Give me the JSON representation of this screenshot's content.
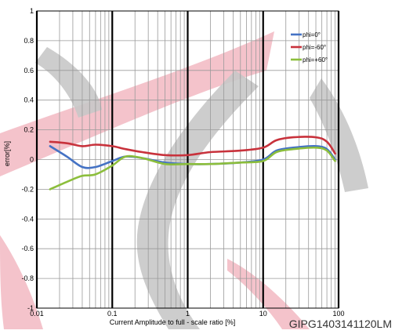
{
  "chart_data": {
    "type": "line",
    "title": "",
    "xlabel": "Current Amplitude to full  - scale ratio [%]",
    "ylabel": "error[%]",
    "xscale": "log",
    "xlim": [
      0.01,
      100
    ],
    "ylim": [
      -1,
      1
    ],
    "grid": true,
    "legend_position": "top-right",
    "x_ticks": [
      {
        "value": 0.01,
        "label": "0.01"
      },
      {
        "value": 0.1,
        "label": "0.1"
      },
      {
        "value": 1,
        "label": "1"
      },
      {
        "value": 10,
        "label": "10"
      },
      {
        "value": 100,
        "label": "100"
      }
    ],
    "y_ticks": [
      {
        "value": 1,
        "label": "1"
      },
      {
        "value": 0.8,
        "label": "0.8"
      },
      {
        "value": 0.6,
        "label": "0.6"
      },
      {
        "value": 0.4,
        "label": "0.4"
      },
      {
        "value": 0.2,
        "label": "0.2"
      },
      {
        "value": 0,
        "label": "0"
      },
      {
        "value": -0.2,
        "label": "-0.2"
      },
      {
        "value": -0.4,
        "label": "-0.4"
      },
      {
        "value": -0.6,
        "label": "-0.6"
      },
      {
        "value": -0.8,
        "label": "-0.8"
      },
      {
        "value": -1,
        "label": "-1"
      }
    ],
    "series": [
      {
        "name": "phi=0°",
        "color": "#4472c4",
        "x": [
          0.015,
          0.025,
          0.04,
          0.06,
          0.1,
          0.15,
          0.25,
          0.5,
          1,
          2,
          5,
          10,
          15,
          25,
          50,
          70,
          90
        ],
        "y": [
          0.09,
          0.02,
          -0.05,
          -0.05,
          -0.01,
          0.02,
          0.01,
          -0.02,
          -0.03,
          -0.03,
          -0.02,
          0.0,
          0.06,
          0.08,
          0.09,
          0.07,
          0.0
        ]
      },
      {
        "name": "phi=-60°",
        "color": "#c8323c",
        "x": [
          0.015,
          0.025,
          0.04,
          0.06,
          0.1,
          0.15,
          0.25,
          0.5,
          1,
          2,
          5,
          10,
          15,
          25,
          50,
          70,
          90
        ],
        "y": [
          0.12,
          0.11,
          0.09,
          0.1,
          0.09,
          0.07,
          0.05,
          0.03,
          0.03,
          0.05,
          0.06,
          0.08,
          0.13,
          0.15,
          0.15,
          0.12,
          0.04
        ]
      },
      {
        "name": "phi=+60°",
        "color": "#8cbe3c",
        "x": [
          0.015,
          0.025,
          0.04,
          0.06,
          0.1,
          0.15,
          0.25,
          0.5,
          1,
          2,
          5,
          10,
          15,
          25,
          50,
          70,
          90
        ],
        "y": [
          -0.2,
          -0.15,
          -0.11,
          -0.1,
          -0.04,
          0.02,
          0.01,
          -0.03,
          -0.03,
          -0.03,
          -0.02,
          -0.01,
          0.05,
          0.07,
          0.08,
          0.06,
          -0.01
        ]
      }
    ]
  },
  "watermark": {
    "text": "GIPG1403141120LM",
    "ribbon_colors": [
      "#f2b8c2",
      "#c8c8c8"
    ]
  }
}
